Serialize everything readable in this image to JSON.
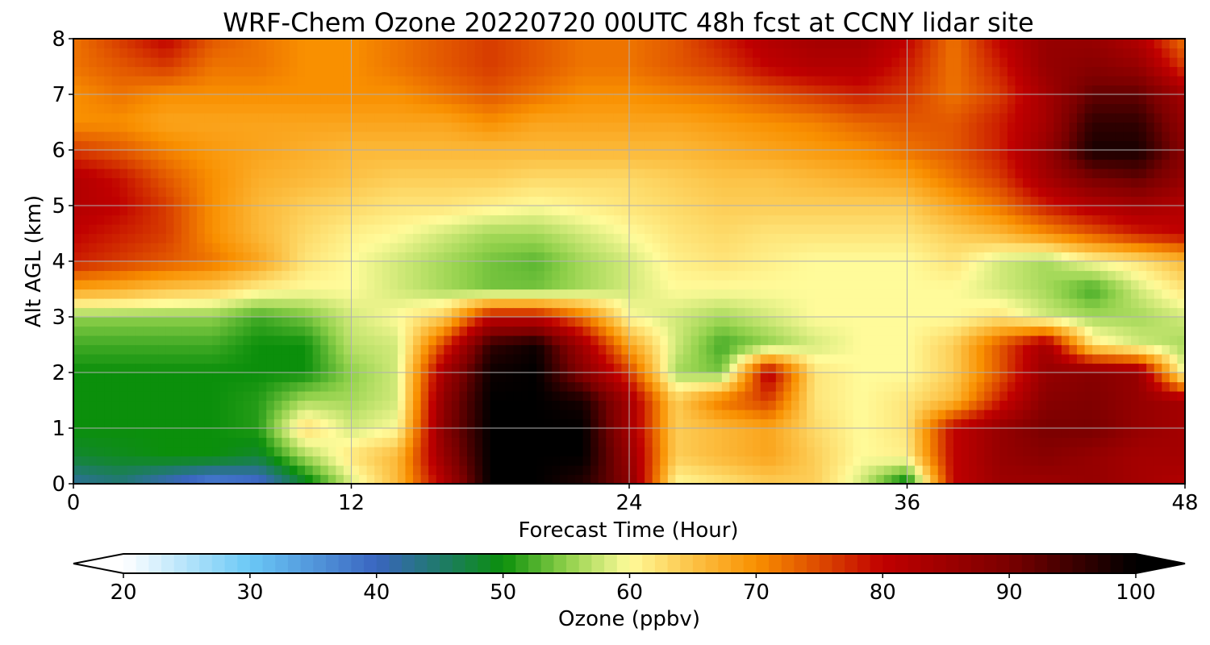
{
  "chart_data": {
    "type": "heatmap",
    "title": "WRF-Chem Ozone  20220720 00UTC 48h fcst at CCNY lidar site",
    "xlabel": "Forecast Time (Hour)",
    "ylabel": "Alt AGL (km)",
    "xlim": [
      0,
      48
    ],
    "ylim": [
      0,
      8
    ],
    "x_ticks": [
      "0",
      "12",
      "24",
      "36",
      "48"
    ],
    "y_ticks": [
      "0",
      "1",
      "2",
      "3",
      "4",
      "5",
      "6",
      "7",
      "8"
    ],
    "grid": true,
    "x_hours": [
      0,
      2,
      4,
      6,
      8,
      10,
      12,
      14,
      16,
      18,
      20,
      22,
      24,
      26,
      28,
      30,
      32,
      34,
      36,
      38,
      40,
      42,
      44,
      46,
      48
    ],
    "z_km": [
      0,
      0.5,
      1,
      1.5,
      2,
      2.5,
      3,
      3.5,
      4,
      4.5,
      5,
      5.5,
      6,
      6.5,
      7,
      7.5,
      8
    ],
    "ozone_ppbv": [
      [
        42,
        44,
        40,
        36,
        38,
        48,
        58,
        66,
        82,
        100,
        100,
        97,
        88,
        60,
        62,
        64,
        64,
        58,
        48,
        80,
        85,
        85,
        86,
        84,
        82
      ],
      [
        48,
        49,
        50,
        50,
        48,
        56,
        62,
        66,
        86,
        100,
        100,
        100,
        86,
        64,
        66,
        68,
        64,
        60,
        61,
        80,
        86,
        88,
        86,
        84,
        84
      ],
      [
        50,
        50,
        50,
        50,
        51,
        63,
        58,
        60,
        88,
        100,
        100,
        100,
        84,
        64,
        66,
        68,
        63,
        60,
        62,
        80,
        86,
        90,
        90,
        86,
        84
      ],
      [
        50,
        50,
        50,
        50,
        51,
        56,
        56,
        58,
        87,
        100,
        100,
        98,
        84,
        64,
        72,
        76,
        62,
        60,
        62,
        66,
        78,
        88,
        89,
        86,
        84
      ],
      [
        50,
        50,
        50,
        50,
        50,
        50,
        55,
        58,
        84,
        99,
        100,
        88,
        76,
        56,
        54,
        82,
        62,
        60,
        60,
        64,
        74,
        86,
        88,
        86,
        58
      ],
      [
        52,
        52,
        52,
        52,
        50,
        50,
        57,
        58,
        76,
        96,
        99,
        84,
        68,
        58,
        52,
        55,
        58,
        60,
        60,
        64,
        74,
        84,
        62,
        58,
        56
      ],
      [
        55,
        55,
        55,
        55,
        52,
        54,
        58,
        60,
        64,
        80,
        80,
        72,
        60,
        58,
        56,
        58,
        60,
        60,
        60,
        60,
        62,
        58,
        56,
        56,
        58
      ],
      [
        68,
        67,
        65,
        64,
        61,
        60,
        60,
        58,
        56,
        54,
        54,
        56,
        58,
        60,
        60,
        60,
        60,
        60,
        60,
        60,
        58,
        56,
        52,
        58,
        62
      ],
      [
        78,
        76,
        74,
        72,
        68,
        62,
        60,
        58,
        56,
        54,
        53,
        56,
        58,
        61,
        62,
        61,
        60,
        60,
        60,
        62,
        58,
        56,
        60,
        62,
        66
      ],
      [
        80,
        78,
        76,
        70,
        66,
        63,
        61,
        60,
        58,
        56,
        56,
        58,
        60,
        62,
        63,
        62,
        62,
        62,
        62,
        64,
        66,
        70,
        74,
        78,
        80
      ],
      [
        82,
        80,
        76,
        70,
        66,
        64,
        63,
        62,
        62,
        61,
        60,
        61,
        62,
        63,
        64,
        64,
        64,
        64,
        64,
        68,
        72,
        78,
        82,
        84,
        82
      ],
      [
        82,
        79,
        74,
        70,
        67,
        66,
        65,
        64,
        64,
        64,
        63,
        63,
        63,
        64,
        65,
        65,
        66,
        67,
        68,
        72,
        76,
        84,
        90,
        92,
        86
      ],
      [
        76,
        74,
        71,
        69,
        68,
        67,
        66,
        66,
        66,
        66,
        66,
        66,
        66,
        66,
        67,
        68,
        69,
        70,
        72,
        74,
        78,
        86,
        98,
        98,
        88
      ],
      [
        70,
        70,
        68,
        68,
        68,
        68,
        68,
        68,
        68,
        70,
        68,
        68,
        68,
        68,
        69,
        70,
        71,
        73,
        74,
        74,
        78,
        84,
        96,
        96,
        86
      ],
      [
        70,
        72,
        70,
        70,
        70,
        70,
        70,
        70,
        72,
        74,
        72,
        70,
        70,
        71,
        72,
        74,
        76,
        78,
        76,
        72,
        76,
        84,
        92,
        92,
        84
      ],
      [
        72,
        74,
        76,
        72,
        72,
        70,
        70,
        72,
        74,
        76,
        74,
        72,
        72,
        74,
        76,
        80,
        82,
        82,
        78,
        72,
        78,
        86,
        88,
        86,
        76
      ],
      [
        72,
        76,
        80,
        74,
        72,
        70,
        70,
        72,
        74,
        76,
        74,
        72,
        72,
        74,
        78,
        82,
        84,
        84,
        80,
        72,
        80,
        86,
        86,
        82,
        72
      ]
    ]
  },
  "colorbar": {
    "label": "Ozone  (ppbv)",
    "min": 20,
    "max": 100,
    "extend": "both",
    "tick_values": [
      20,
      30,
      40,
      50,
      60,
      70,
      80,
      90,
      100
    ],
    "tick_labels": [
      "20",
      "30",
      "40",
      "50",
      "60",
      "70",
      "80",
      "90",
      "100"
    ],
    "colormap_stops": [
      {
        "value": 20,
        "color": "#ffffff"
      },
      {
        "value": 30,
        "color": "#6ac8f6"
      },
      {
        "value": 40,
        "color": "#3a65c0"
      },
      {
        "value": 45,
        "color": "#1f7a6a"
      },
      {
        "value": 50,
        "color": "#0b8f0b"
      },
      {
        "value": 55,
        "color": "#8fd04a"
      },
      {
        "value": 60,
        "color": "#fffb9a"
      },
      {
        "value": 65,
        "color": "#fcc246"
      },
      {
        "value": 70,
        "color": "#f99000"
      },
      {
        "value": 75,
        "color": "#dd4a00"
      },
      {
        "value": 80,
        "color": "#c00000"
      },
      {
        "value": 90,
        "color": "#7a0000"
      },
      {
        "value": 100,
        "color": "#000000"
      }
    ],
    "under_color": "#ffffff",
    "over_color": "#000000"
  }
}
